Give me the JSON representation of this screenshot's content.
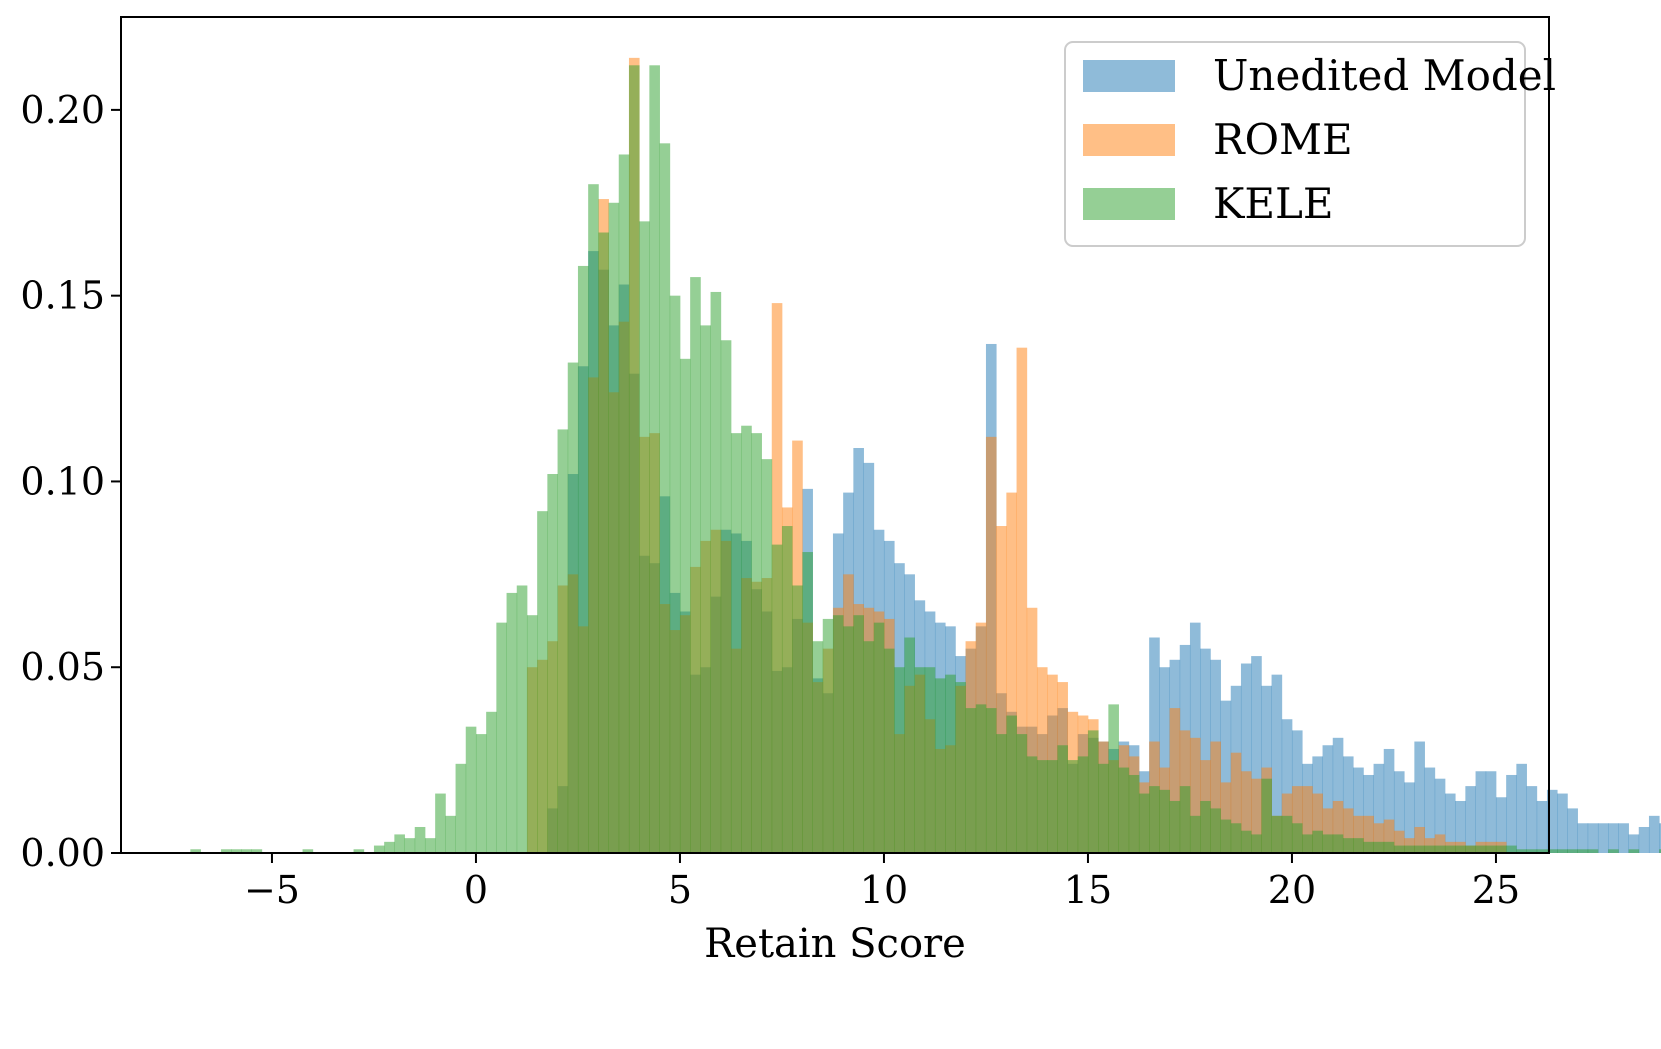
{
  "chart_data": {
    "type": "bar",
    "subtype": "histogram",
    "title": "",
    "xlabel": "Retain Score",
    "ylabel": "",
    "xlim": [
      -8.7,
      26.3
    ],
    "ylim": [
      0,
      0.225
    ],
    "xticks": [
      -5,
      0,
      5,
      10,
      15,
      20,
      25
    ],
    "xtick_labels": [
      "−5",
      "0",
      "5",
      "10",
      "15",
      "20",
      "25"
    ],
    "yticks": [
      0.0,
      0.05,
      0.1,
      0.15,
      0.2
    ],
    "ytick_labels": [
      "0.00",
      "0.05",
      "0.10",
      "0.15",
      "0.20"
    ],
    "grid": false,
    "legend_position": "top-right",
    "series": [
      {
        "name": "Unedited Model",
        "color": "#1f77b4",
        "opacity": 0.5,
        "bin_width": 0.25,
        "x_start": 1.75,
        "values": [
          0.012,
          0.018,
          0.102,
          0.131,
          0.162,
          0.157,
          0.142,
          0.153,
          0.129,
          0.08,
          0.078,
          0.096,
          0.07,
          0.065,
          0.048,
          0.05,
          0.069,
          0.087,
          0.086,
          0.084,
          0.071,
          0.065,
          0.049,
          0.05,
          0.063,
          0.098,
          0.047,
          0.043,
          0.086,
          0.097,
          0.109,
          0.105,
          0.087,
          0.084,
          0.078,
          0.075,
          0.068,
          0.065,
          0.062,
          0.061,
          0.053,
          0.055,
          0.061,
          0.137,
          0.043,
          0.038,
          0.034,
          0.034,
          0.032,
          0.037,
          0.039,
          0.024,
          0.032,
          0.031,
          0.03,
          0.028,
          0.03,
          0.029,
          0.022,
          0.058,
          0.05,
          0.052,
          0.056,
          0.062,
          0.055,
          0.052,
          0.041,
          0.045,
          0.051,
          0.053,
          0.045,
          0.048,
          0.036,
          0.033,
          0.024,
          0.026,
          0.029,
          0.031,
          0.026,
          0.023,
          0.021,
          0.024,
          0.028,
          0.022,
          0.019,
          0.03,
          0.023,
          0.02,
          0.016,
          0.014,
          0.018,
          0.022,
          0.022,
          0.015,
          0.021,
          0.024,
          0.018,
          0.014,
          0.017,
          0.016,
          0.012,
          0.008,
          0.008,
          0.008,
          0.008,
          0.008,
          0.005,
          0.007,
          0.01,
          0.008,
          0.005,
          0.003,
          0.001,
          0.001,
          0.001,
          0.001,
          0.001,
          0.001,
          0.001,
          0.001,
          0.003,
          0.002,
          0.003,
          0.002
        ]
      },
      {
        "name": "ROME",
        "color": "#ff7f0e",
        "opacity": 0.5,
        "bin_width": 0.25,
        "x_start": 1.25,
        "values": [
          0.05,
          0.052,
          0.057,
          0.072,
          0.075,
          0.061,
          0.128,
          0.176,
          0.124,
          0.143,
          0.214,
          0.112,
          0.113,
          0.067,
          0.06,
          0.064,
          0.077,
          0.084,
          0.087,
          0.084,
          0.055,
          0.074,
          0.073,
          0.074,
          0.148,
          0.093,
          0.111,
          0.062,
          0.046,
          0.055,
          0.066,
          0.075,
          0.067,
          0.066,
          0.065,
          0.063,
          0.032,
          0.045,
          0.048,
          0.036,
          0.028,
          0.029,
          0.045,
          0.057,
          0.062,
          0.112,
          0.088,
          0.097,
          0.136,
          0.066,
          0.05,
          0.048,
          0.046,
          0.038,
          0.037,
          0.036,
          0.03,
          0.025,
          0.029,
          0.026,
          0.019,
          0.03,
          0.023,
          0.039,
          0.033,
          0.031,
          0.025,
          0.03,
          0.019,
          0.027,
          0.022,
          0.02,
          0.023,
          0.01,
          0.016,
          0.018,
          0.018,
          0.016,
          0.012,
          0.014,
          0.012,
          0.01,
          0.01,
          0.008,
          0.009,
          0.006,
          0.004,
          0.007,
          0.004,
          0.005,
          0.003,
          0.003,
          0.002,
          0.003,
          0.003,
          0.003
        ]
      },
      {
        "name": "KELE",
        "color": "#2ca02c",
        "opacity": 0.5,
        "bin_width": 0.25,
        "x_start": -7.0,
        "values": [
          0.001,
          0.0,
          0.0,
          0.001,
          0.001,
          0.001,
          0.001,
          0.0,
          0.0,
          0.0,
          0.0,
          0.001,
          0.0,
          0.0,
          0.0,
          0.0,
          0.001,
          0.0,
          0.002,
          0.003,
          0.005,
          0.004,
          0.007,
          0.004,
          0.016,
          0.01,
          0.024,
          0.034,
          0.032,
          0.038,
          0.062,
          0.07,
          0.072,
          0.064,
          0.092,
          0.102,
          0.114,
          0.132,
          0.158,
          0.18,
          0.167,
          0.175,
          0.188,
          0.212,
          0.17,
          0.212,
          0.191,
          0.15,
          0.133,
          0.155,
          0.142,
          0.151,
          0.138,
          0.113,
          0.115,
          0.113,
          0.106,
          0.083,
          0.088,
          0.072,
          0.081,
          0.057,
          0.063,
          0.064,
          0.061,
          0.064,
          0.057,
          0.062,
          0.055,
          0.05,
          0.058,
          0.05,
          0.05,
          0.047,
          0.048,
          0.046,
          0.039,
          0.04,
          0.039,
          0.032,
          0.037,
          0.032,
          0.026,
          0.025,
          0.025,
          0.029,
          0.025,
          0.026,
          0.033,
          0.024,
          0.04,
          0.023,
          0.021,
          0.016,
          0.018,
          0.017,
          0.014,
          0.018,
          0.01,
          0.014,
          0.012,
          0.009,
          0.008,
          0.006,
          0.005,
          0.02,
          0.01,
          0.01,
          0.008,
          0.005,
          0.006,
          0.005,
          0.005,
          0.004,
          0.004,
          0.003,
          0.003,
          0.003,
          0.002,
          0.002,
          0.002,
          0.002,
          0.002,
          0.002,
          0.002,
          0.002,
          0.002,
          0.002,
          0.002,
          0.002,
          0.001,
          0.001,
          0.001,
          0.001,
          0.001,
          0.001,
          0.001,
          0.001,
          0.0,
          0.001,
          0.0,
          0.001,
          0.0,
          0.0,
          0.001,
          0.0,
          0.0,
          0.0,
          0.0,
          0.001
        ]
      }
    ]
  }
}
